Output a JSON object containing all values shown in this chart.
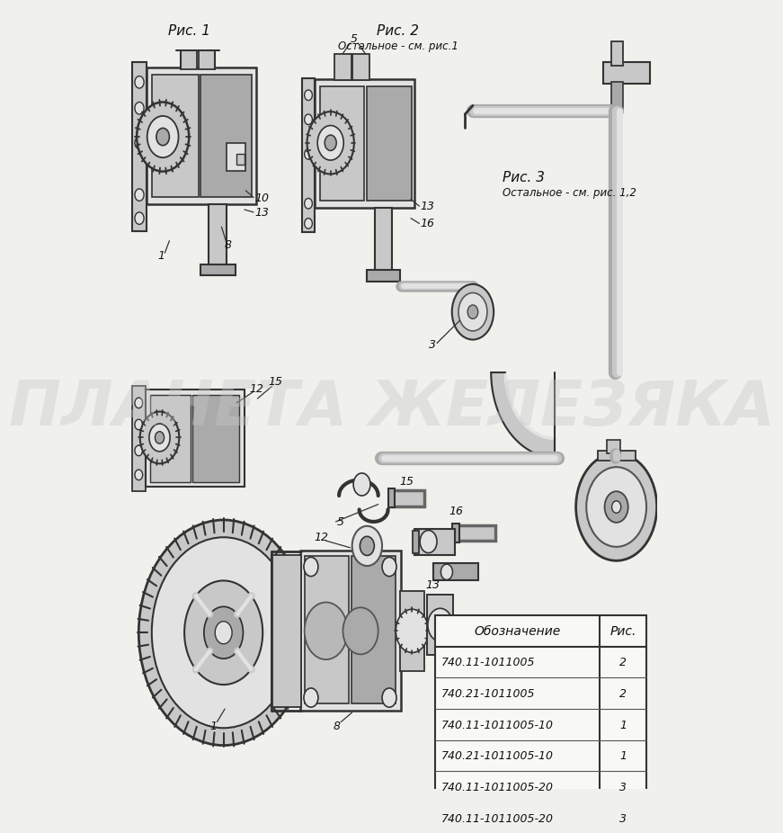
{
  "bg_color": "#f0f0ec",
  "watermark": "ПЛАНЕТА ЖЕЛЕЗЯКА",
  "ris1": "Рис. 1",
  "ris2": "Рис. 2",
  "ris2_note": "Остальное - см. рис.1",
  "ris3": "Рис. 3",
  "ris3_note": "Остальное - см. рис. 1,2",
  "table_header_col1": "Обозначение",
  "table_header_col2": "Рис.",
  "table_rows": [
    [
      "740.11-1011005",
      "2"
    ],
    [
      "740.21-1011005",
      "2"
    ],
    [
      "740.11-1011005-10",
      "1"
    ],
    [
      "740.21-1011005-10",
      "1"
    ],
    [
      "740.11-1011005-20",
      "3"
    ],
    [
      "740.11-1011005-20",
      "3"
    ]
  ],
  "lc": "#333333",
  "fl": "#e2e2e2",
  "fm": "#c8c8c8",
  "fd": "#aaaaaa",
  "wm_color": "#c8c8c8",
  "wm_alpha": 0.38
}
